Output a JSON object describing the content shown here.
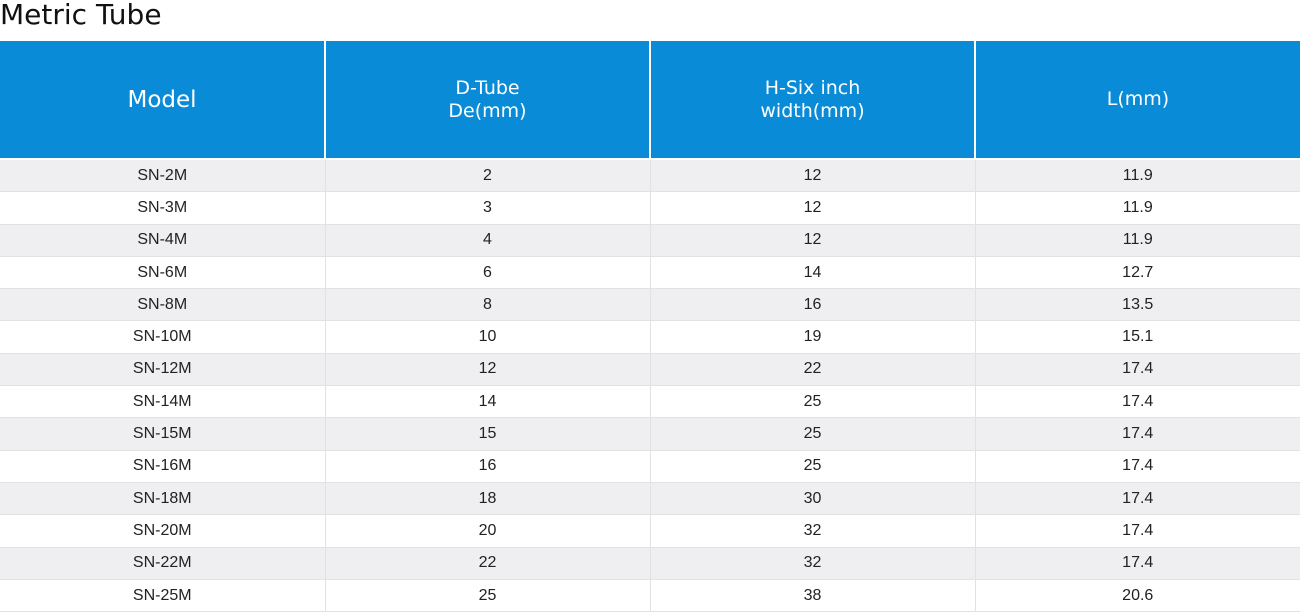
{
  "title": "Metric Tube",
  "table": {
    "headers": [
      {
        "lines": [
          "Model"
        ]
      },
      {
        "lines": [
          "D-Tube",
          "De(mm)"
        ]
      },
      {
        "lines": [
          "H-Six inch",
          "width(mm)"
        ]
      },
      {
        "lines": [
          "L(mm)"
        ]
      }
    ],
    "rows": [
      [
        "SN-2M",
        "2",
        "12",
        "11.9"
      ],
      [
        "SN-3M",
        "3",
        "12",
        "11.9"
      ],
      [
        "SN-4M",
        "4",
        "12",
        "11.9"
      ],
      [
        "SN-6M",
        "6",
        "14",
        "12.7"
      ],
      [
        "SN-8M",
        "8",
        "16",
        "13.5"
      ],
      [
        "SN-10M",
        "10",
        "19",
        "15.1"
      ],
      [
        "SN-12M",
        "12",
        "22",
        "17.4"
      ],
      [
        "SN-14M",
        "14",
        "25",
        "17.4"
      ],
      [
        "SN-15M",
        "15",
        "25",
        "17.4"
      ],
      [
        "SN-16M",
        "16",
        "25",
        "17.4"
      ],
      [
        "SN-18M",
        "18",
        "30",
        "17.4"
      ],
      [
        "SN-20M",
        "20",
        "32",
        "17.4"
      ],
      [
        "SN-22M",
        "22",
        "32",
        "17.4"
      ],
      [
        "SN-25M",
        "25",
        "38",
        "20.6"
      ]
    ]
  },
  "colors": {
    "header_bg": "#0a8bd7",
    "header_text": "#ffffff",
    "row_alt_bg": "#efeff1"
  }
}
